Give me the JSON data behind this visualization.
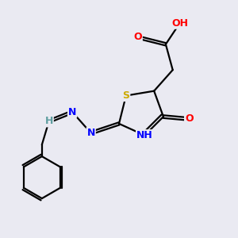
{
  "background_color": "#eaeaf2",
  "atom_colors": {
    "C": "#000000",
    "H": "#5f9ea0",
    "O": "#ff0000",
    "N": "#0000ff",
    "S": "#ccaa00"
  },
  "figsize": [
    3.0,
    3.0
  ],
  "dpi": 100
}
